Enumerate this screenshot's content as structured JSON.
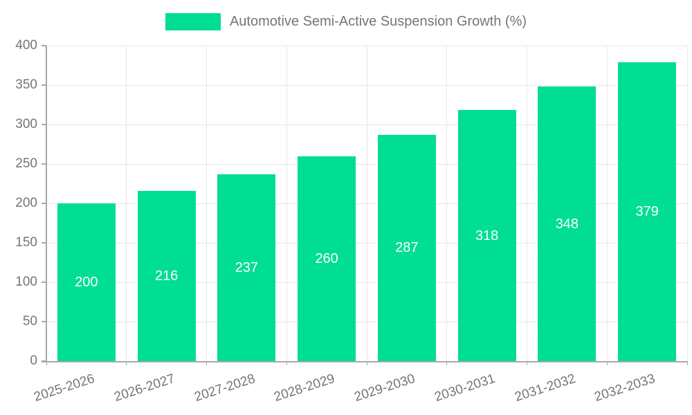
{
  "chart_data": {
    "type": "bar",
    "legend": "Automotive Semi-Active Suspension Growth (%)",
    "legend_position": "top-center",
    "categories": [
      "2025-2026",
      "2026-2027",
      "2027-2028",
      "2028-2029",
      "2029-2030",
      "2030-2031",
      "2031-2032",
      "2032-2033"
    ],
    "values": [
      200,
      216,
      237,
      260,
      287,
      318,
      348,
      379
    ],
    "xlabel": "",
    "ylabel": "",
    "ylim": [
      0,
      400
    ],
    "yticks": [
      0,
      50,
      100,
      150,
      200,
      250,
      300,
      350,
      400
    ],
    "grid": true,
    "bar_labels_inside": true,
    "x_label_rotation_deg": -18,
    "colors": {
      "bar": "#00DE94",
      "bar_label": "#ffffff",
      "axis": "#a8a8a8",
      "grid": "#e7e7e7",
      "text": "#757575",
      "background": "#ffffff"
    }
  }
}
